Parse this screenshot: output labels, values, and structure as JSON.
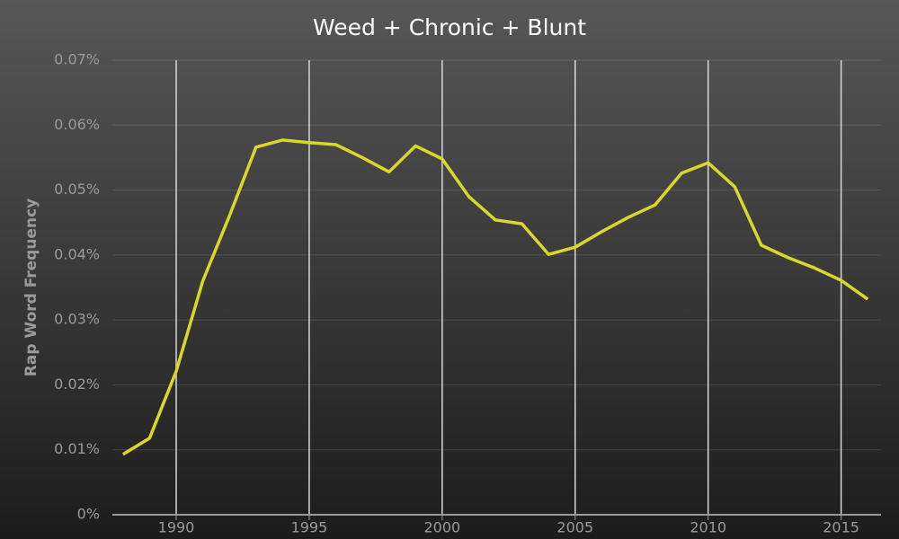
{
  "chart_data": {
    "type": "line",
    "title": "Weed + Chronic + Blunt",
    "y_label": "Rap Word Frequency",
    "x": [
      1988,
      1989,
      1990,
      1991,
      1992,
      1993,
      1994,
      1995,
      1996,
      1997,
      1998,
      1999,
      2000,
      2001,
      2002,
      2003,
      2004,
      2005,
      2006,
      2007,
      2008,
      2009,
      2010,
      2011,
      2012,
      2013,
      2014,
      2015,
      2016
    ],
    "series": [
      {
        "name": "Weed + Chronic + Blunt",
        "color": "#d8d82a",
        "values": [
          0.0093,
          0.0118,
          0.0221,
          0.036,
          0.046,
          0.0566,
          0.0577,
          0.0573,
          0.057,
          0.055,
          0.0528,
          0.0568,
          0.0548,
          0.049,
          0.0454,
          0.0448,
          0.0401,
          0.0412,
          0.0436,
          0.0458,
          0.0477,
          0.0526,
          0.0542,
          0.0505,
          0.0415,
          0.0396,
          0.038,
          0.0361,
          0.0332
        ]
      }
    ],
    "xlim": [
      1987.6,
      2016.5
    ],
    "xticks": [
      1990,
      1995,
      2000,
      2005,
      2010,
      2015
    ],
    "ylim": [
      0,
      0.07
    ],
    "yticks": [
      {
        "value": 0,
        "label": "0%"
      },
      {
        "value": 0.01,
        "label": "0.01%"
      },
      {
        "value": 0.02,
        "label": "0.02%"
      },
      {
        "value": 0.03,
        "label": "0.03%"
      },
      {
        "value": 0.04,
        "label": "0.04%"
      },
      {
        "value": 0.05,
        "label": "0.05%"
      },
      {
        "value": 0.06,
        "label": "0.06%"
      },
      {
        "value": 0.07,
        "label": "0.07%"
      }
    ],
    "grid": true
  }
}
